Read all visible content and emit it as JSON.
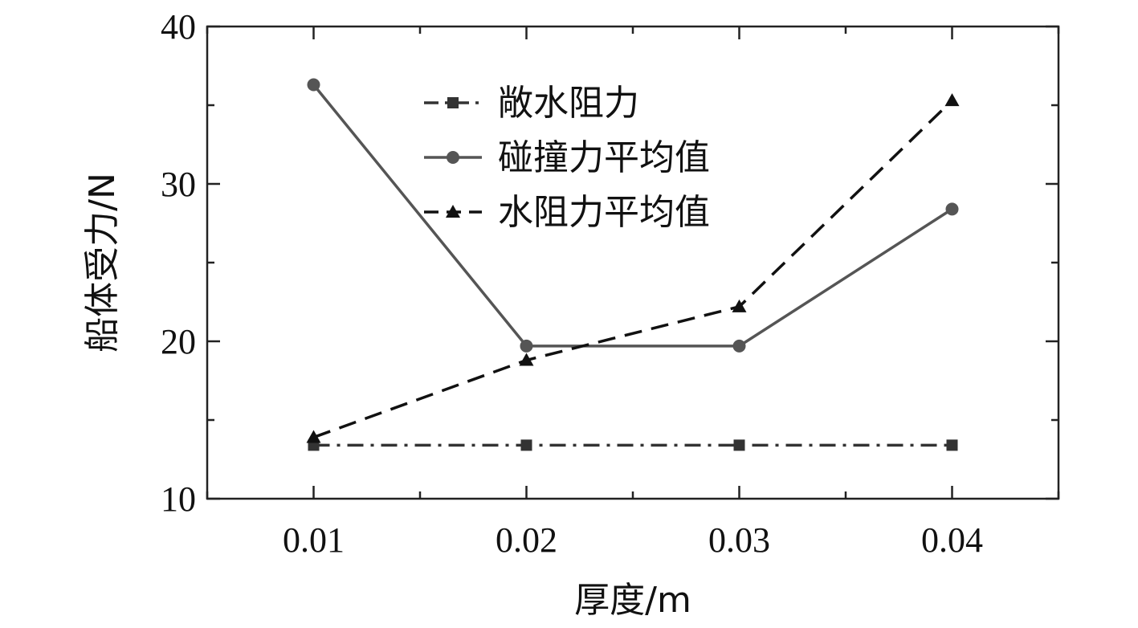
{
  "chart_data": {
    "type": "line",
    "xlabel": "厚度/m",
    "ylabel": "船体受力/N",
    "x": [
      0.01,
      0.02,
      0.03,
      0.04
    ],
    "x_tick_labels": [
      "0.01",
      "0.02",
      "0.03",
      "0.04"
    ],
    "xlim": [
      0.005,
      0.045
    ],
    "ylim": [
      10,
      40
    ],
    "y_ticks": [
      10,
      20,
      30,
      40
    ],
    "y_tick_labels": [
      "10",
      "20",
      "30",
      "40"
    ],
    "grid": false,
    "legend_position": "top-center",
    "series": [
      {
        "name": "敞水阻力",
        "values": [
          13.4,
          13.4,
          13.4,
          13.4
        ],
        "color": "#333333",
        "dash": "dashdot",
        "marker": "square"
      },
      {
        "name": "碰撞力平均值",
        "values": [
          36.3,
          19.7,
          19.7,
          28.4
        ],
        "color": "#555555",
        "dash": "solid",
        "marker": "circle"
      },
      {
        "name": "水阻力平均值",
        "values": [
          13.9,
          18.8,
          22.2,
          35.3
        ],
        "color": "#111111",
        "dash": "dashed",
        "marker": "triangle"
      }
    ]
  }
}
